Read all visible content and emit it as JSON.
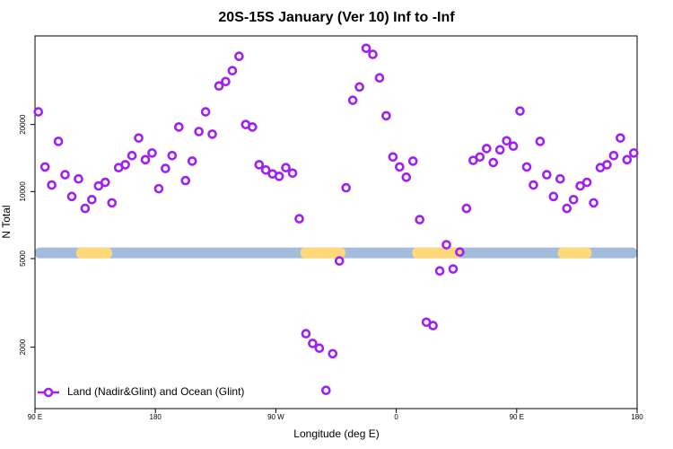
{
  "chart_data": {
    "type": "scatter",
    "title": "20S-15S January (Ver 10)   Inf to -Inf",
    "xlabel": "Longitude (deg E)",
    "ylabel": "N Total",
    "log_y": true,
    "xlim": [
      90,
      540
    ],
    "ylim": [
      1060,
      50000
    ],
    "xticks": [
      {
        "value": 90,
        "label": "90 E"
      },
      {
        "value": 180,
        "label": "180"
      },
      {
        "value": 270,
        "label": "90 W"
      },
      {
        "value": 360,
        "label": "0"
      },
      {
        "value": 450,
        "label": "90 E"
      },
      {
        "value": 540,
        "label": "180"
      }
    ],
    "yticks": [
      2000,
      5000,
      10000,
      20000
    ],
    "legend_position": "bottom-left",
    "strip_value": 5300,
    "strip_color": "#a4bcdc",
    "land_color": "#ffd87a",
    "land_ranges": [
      [
        120.8,
        147.6
      ],
      [
        288.4,
        321.9
      ],
      [
        372,
        409
      ],
      [
        480.7,
        506
      ]
    ],
    "series": [
      {
        "name": "Land (Nadir&Glint) and Ocean (Glint)",
        "color": "#a020f0",
        "x": [
          92.5,
          97.5,
          102.5,
          107.5,
          112.5,
          117.5,
          122.5,
          127.5,
          132.5,
          137.5,
          142.5,
          147.5,
          152.5,
          157.5,
          162.5,
          167.5,
          172.5,
          177.5,
          182.5,
          187.5,
          192.5,
          197.5,
          202.5,
          207.5,
          212.5,
          217.5,
          222.5,
          227.5,
          232.5,
          237.5,
          242.5,
          247.5,
          252.5,
          257.5,
          262.5,
          267.5,
          272.5,
          277.5,
          282.5,
          287.5,
          292.5,
          297.5,
          302.5,
          307.5,
          312.5,
          317.5,
          322.5,
          327.5,
          332.5,
          337.5,
          342.5,
          347.5,
          352.5,
          357.5,
          362.5,
          367.5,
          372.5,
          377.5,
          382.5,
          387.5,
          392.5,
          397.5,
          402.5,
          407.5,
          412.5,
          417.5,
          422.5,
          427.5,
          432.5,
          437.5,
          442.5,
          447.5,
          452.5,
          457.5,
          462.5,
          467.5,
          472.5,
          477.5,
          482.5,
          487.5,
          492.5,
          497.5,
          502.5,
          507.5,
          512.5,
          517.5,
          522.5,
          527.5,
          532.5,
          537.5
        ],
        "values": [
          22800,
          12900,
          10700,
          16800,
          11900,
          9500,
          11400,
          8400,
          9200,
          10600,
          11000,
          8900,
          12800,
          13200,
          14500,
          17400,
          13900,
          14900,
          10300,
          12700,
          14500,
          19500,
          11200,
          13700,
          18600,
          22800,
          18100,
          29800,
          31200,
          34900,
          40500,
          20000,
          19500,
          13200,
          12500,
          12000,
          11700,
          12800,
          12100,
          7550,
          2300,
          2080,
          1980,
          1280,
          1870,
          4880,
          10400,
          25700,
          29500,
          44000,
          41300,
          32400,
          21900,
          14300,
          12900,
          11600,
          13700,
          7480,
          2590,
          2500,
          4400,
          5770,
          4490,
          5350,
          8400,
          13800,
          14300,
          15600,
          13500,
          15400,
          16900,
          16000,
          23000,
          12900,
          10700,
          16800,
          11900,
          9500,
          11400,
          8400,
          9200,
          10600,
          11000,
          8900,
          12800,
          13200,
          14500,
          17400,
          13900,
          14900
        ]
      }
    ]
  }
}
